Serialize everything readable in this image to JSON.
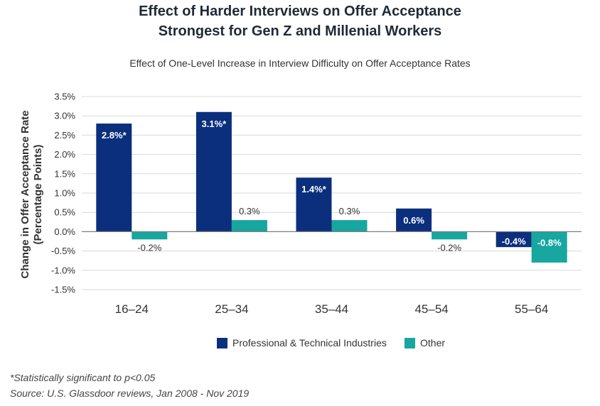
{
  "chart_data": {
    "type": "bar",
    "title_lines": [
      "Effect of Harder Interviews on Offer Acceptance",
      "Strongest for Gen Z and Millenial Workers"
    ],
    "subtitle": "Effect of One-Level Increase in Interview Difficulty on Offer Acceptance Rates",
    "ylabel_lines": [
      "Change in Offer Acceptance Rate",
      "(Percentage Points)"
    ],
    "xlabel": "",
    "ylim": [
      -1.5,
      3.5
    ],
    "yticks": [
      3.5,
      3.0,
      2.5,
      2.0,
      1.5,
      1.0,
      0.5,
      0.0,
      -0.5,
      -1.0,
      -1.5
    ],
    "ytick_labels": [
      "3.5%",
      "3.0%",
      "2.5%",
      "2.0%",
      "1.5%",
      "1.0%",
      "0.5%",
      "0.0%",
      "-0.5%",
      "-1.0%",
      "-1.5%"
    ],
    "categories": [
      "16–24",
      "25–34",
      "35–44",
      "45–54",
      "55–64"
    ],
    "series": [
      {
        "name": "Professional & Technical Industries",
        "color": "#0b2f7c",
        "values": [
          2.8,
          3.1,
          1.4,
          0.6,
          -0.4
        ],
        "labels": [
          "2.8%*",
          "3.1%*",
          "1.4%*",
          "0.6%",
          "-0.4%"
        ]
      },
      {
        "name": "Other",
        "color": "#17a6a0",
        "values": [
          -0.2,
          0.3,
          0.3,
          -0.2,
          -0.8
        ],
        "labels": [
          "-0.2%",
          "0.3%",
          "0.3%",
          "-0.2%",
          "-0.8%"
        ]
      }
    ],
    "grid": true,
    "legend_position": "bottom",
    "footnotes": [
      "*Statistically significant to p<0.05",
      "Source: U.S. Glassdoor reviews, Jan 2008 - Nov 2019"
    ]
  }
}
